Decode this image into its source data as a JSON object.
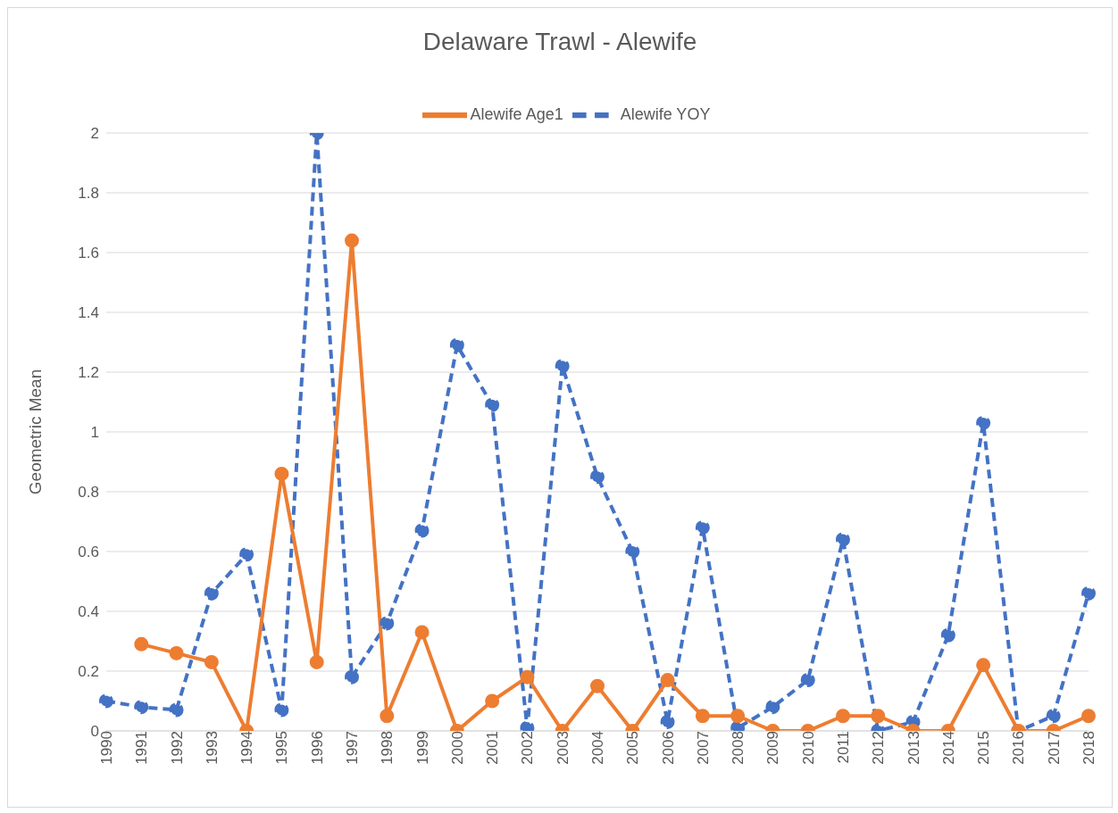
{
  "chart_data": {
    "type": "line",
    "title": "Delaware Trawl - Alewife",
    "ylabel": "Geometric Mean",
    "categories": [
      "1990",
      "1991",
      "1992",
      "1993",
      "1994",
      "1995",
      "1996",
      "1997",
      "1998",
      "1999",
      "2000",
      "2001",
      "2002",
      "2003",
      "2004",
      "2005",
      "2006",
      "2007",
      "2008",
      "2009",
      "2010",
      "2011",
      "2012",
      "2013",
      "2014",
      "2015",
      "2016",
      "2017",
      "2018"
    ],
    "series": [
      {
        "name": "Alewife YOY",
        "color": "#4472c4",
        "line_style": "dashed",
        "values": [
          0.1,
          0.08,
          0.07,
          0.46,
          0.59,
          0.07,
          2.0,
          0.18,
          0.36,
          0.67,
          1.29,
          1.09,
          0.01,
          1.22,
          0.85,
          0.6,
          0.03,
          0.68,
          0.01,
          0.08,
          0.17,
          0.64,
          0,
          0.03,
          0.32,
          1.03,
          0,
          0.05,
          0.46
        ]
      },
      {
        "name": "Alewife Age1",
        "color": "#ed7d31",
        "line_style": "solid",
        "values": [
          null,
          0.29,
          0.26,
          0.23,
          0,
          0.86,
          0.23,
          1.64,
          0.05,
          0.33,
          0,
          0.1,
          0.18,
          0,
          0.15,
          0,
          0.17,
          0.05,
          0.05,
          0,
          0,
          0.05,
          0.05,
          0,
          0,
          0.22,
          0,
          0,
          0.05
        ]
      }
    ],
    "ylim": [
      0,
      2
    ],
    "yticks": [
      0,
      0.2,
      0.4,
      0.6,
      0.8,
      1,
      1.2,
      1.4,
      1.6,
      1.8,
      2
    ],
    "grid": "y",
    "legend": "top",
    "marker": "circle"
  }
}
